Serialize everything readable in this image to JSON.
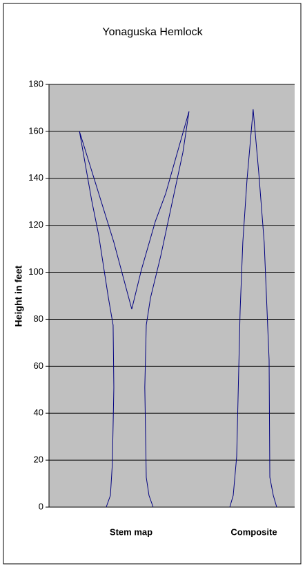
{
  "chart_data": {
    "type": "line",
    "title": "Yonaguska Hemlock",
    "y_label": "Height in feet",
    "x_labels": [
      "Stem map",
      "Composite"
    ],
    "xlim": [
      0,
      10
    ],
    "ylim": [
      0,
      180
    ],
    "yticks": [
      0,
      20,
      40,
      60,
      80,
      100,
      120,
      140,
      160,
      180
    ],
    "grid": true,
    "plot_background": "#c0c0c0",
    "series": [
      {
        "color": "#000080",
        "x": [
          2.33,
          2.5,
          2.58,
          2.64,
          2.61,
          2.42,
          2.22,
          2.02,
          1.74,
          1.24,
          2.64,
          3.37,
          3.76,
          4.33,
          4.75,
          5.7,
          5.45,
          5.03,
          4.55,
          4.13,
          3.96,
          3.9,
          3.96,
          4.07,
          4.24
        ],
        "values": [
          0,
          5,
          18.6,
          51,
          77.5,
          89,
          102.5,
          116,
          130.5,
          160,
          112.8,
          84.3,
          101,
          121.7,
          133.5,
          168.5,
          151,
          130.5,
          107,
          89,
          77.5,
          51,
          12.7,
          5,
          0
        ]
      },
      {
        "color": "#000080",
        "x": [
          7.36,
          7.5,
          7.64,
          7.78,
          7.89,
          8.06,
          8.31,
          8.54,
          8.76,
          8.96,
          8.99,
          9.13,
          9.27
        ],
        "values": [
          0,
          5,
          21.5,
          83.4,
          112.8,
          139.3,
          169.4,
          142.3,
          112.8,
          62.7,
          12.7,
          5,
          0
        ]
      }
    ]
  }
}
